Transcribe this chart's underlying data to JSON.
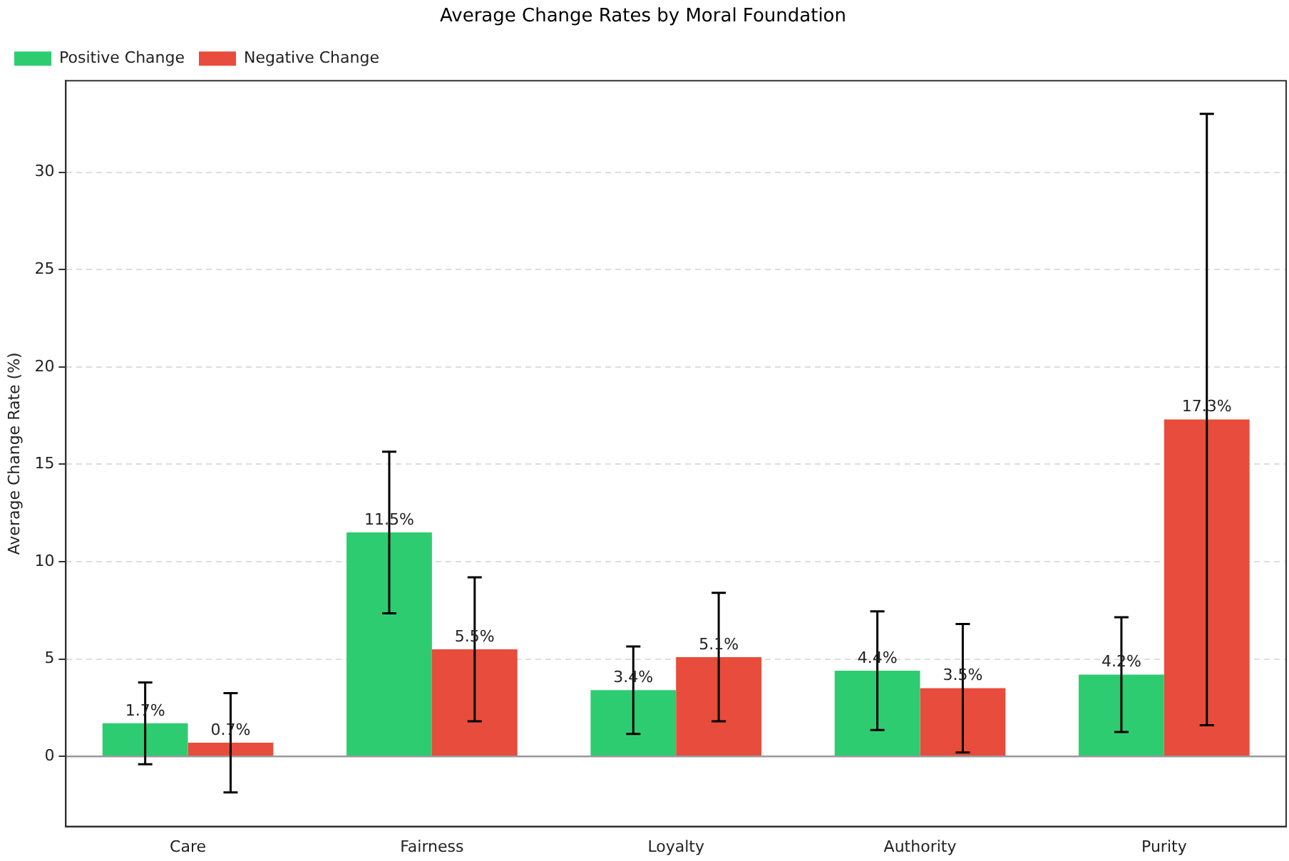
{
  "chart_data": {
    "type": "bar",
    "title": "Average Change Rates by Moral Foundation",
    "ylabel": "Average Change Rate (%)",
    "categories": [
      "Care",
      "Fairness",
      "Loyalty",
      "Authority",
      "Purity"
    ],
    "series": [
      {
        "name": "Positive Change",
        "color": "#2ecc71",
        "values": [
          1.7,
          11.5,
          3.4,
          4.4,
          4.2
        ],
        "errors": [
          2.1,
          4.15,
          2.25,
          3.05,
          2.95
        ],
        "value_labels": [
          "1.7%",
          "11.5%",
          "3.4%",
          "4.4%",
          "4.2%"
        ]
      },
      {
        "name": "Negative Change",
        "color": "#e74c3c",
        "values": [
          0.7,
          5.5,
          5.1,
          3.5,
          17.3
        ],
        "errors": [
          2.55,
          3.7,
          3.3,
          3.3,
          15.7
        ],
        "value_labels": [
          "0.7%",
          "5.5%",
          "5.1%",
          "3.5%",
          "17.3%"
        ]
      }
    ],
    "ylim": [
      -3.6,
      34.7
    ],
    "yticks": [
      0,
      5,
      10,
      15,
      20,
      25,
      30
    ],
    "grid": "y",
    "legend": "top left",
    "ref_lines": [
      {
        "axis": "y",
        "value": 0,
        "color": "#999999"
      }
    ]
  }
}
